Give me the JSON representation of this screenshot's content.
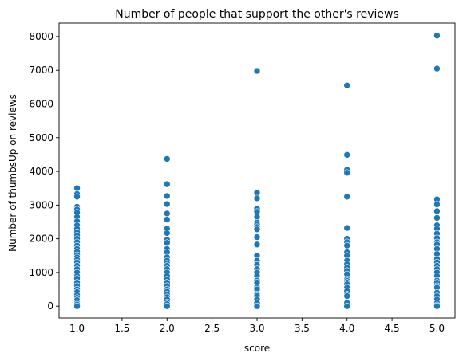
{
  "chart_data": {
    "type": "scatter",
    "title": "Number of people that support the other's reviews",
    "xlabel": "score",
    "ylabel": "Number of thumbsUp on reviews",
    "xlim": [
      0.8,
      5.2
    ],
    "ylim": [
      -350,
      8400
    ],
    "xticks": [
      1.0,
      1.5,
      2.0,
      2.5,
      3.0,
      3.5,
      4.0,
      4.5,
      5.0
    ],
    "xtick_labels": [
      "1.0",
      "1.5",
      "2.0",
      "2.5",
      "3.0",
      "3.5",
      "4.0",
      "4.5",
      "5.0"
    ],
    "yticks": [
      0,
      1000,
      2000,
      3000,
      4000,
      5000,
      6000,
      7000,
      8000
    ],
    "ytick_labels": [
      "0",
      "1000",
      "2000",
      "3000",
      "4000",
      "5000",
      "6000",
      "7000",
      "8000"
    ],
    "grid": false,
    "marker_color": "#1f77b4",
    "series": [
      {
        "x": 1.0,
        "y": [
          3500,
          3330,
          3250,
          2950,
          2870,
          2780,
          2650,
          2520,
          2400,
          2300,
          2200,
          2100,
          2000,
          1900,
          1800,
          1700,
          1620,
          1520,
          1450,
          1380,
          1300,
          1200,
          1100,
          1000,
          900,
          820,
          700,
          600,
          500,
          420,
          330,
          250,
          180,
          100,
          50,
          0
        ]
      },
      {
        "x": 2.0,
        "y": [
          4370,
          3620,
          3270,
          3030,
          2750,
          2570,
          2300,
          2170,
          1970,
          1880,
          1700,
          1600,
          1450,
          1350,
          1270,
          1200,
          1100,
          1000,
          900,
          800,
          700,
          600,
          500,
          430,
          350,
          270,
          200,
          120,
          60,
          0
        ]
      },
      {
        "x": 3.0,
        "y": [
          6980,
          3370,
          3200,
          2900,
          2800,
          2650,
          2480,
          2420,
          2350,
          2280,
          2050,
          1830,
          1500,
          1350,
          1230,
          1100,
          1000,
          900,
          760,
          700,
          560,
          500,
          350,
          300,
          200,
          100,
          0
        ]
      },
      {
        "x": 4.0,
        "y": [
          6550,
          4490,
          4050,
          3960,
          3250,
          2320,
          2000,
          1900,
          1800,
          1600,
          1500,
          1350,
          1250,
          1150,
          1050,
          950,
          800,
          750,
          700,
          650,
          550,
          450,
          350,
          300,
          100,
          0
        ]
      },
      {
        "x": 5.0,
        "y": [
          8030,
          7050,
          3170,
          3020,
          2820,
          2620,
          2400,
          2300,
          2150,
          2020,
          1900,
          1830,
          1700,
          1550,
          1400,
          1300,
          1200,
          1100,
          1000,
          900,
          760,
          700,
          600,
          550,
          400,
          300,
          200,
          100,
          30,
          0
        ]
      }
    ]
  }
}
